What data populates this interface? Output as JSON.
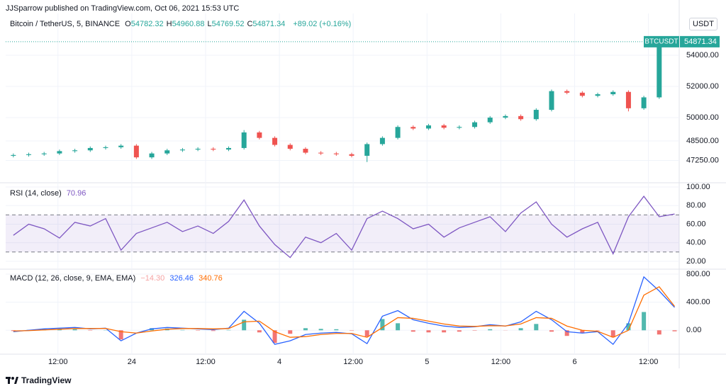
{
  "header": {
    "published": "JJSparrow published on TradingView.com, Oct 06, 2021 15:53 UTC",
    "brand": "TradingView",
    "currency": "USDT"
  },
  "chart_data": [
    {
      "type": "candlestick",
      "title": "Bitcoin / TetherUS, 5, BINANCE",
      "symbol": "BTCUSDT",
      "ohlc_labels": [
        "O",
        "H",
        "L",
        "C"
      ],
      "change": "+89.02 (+0.16%)",
      "up_color": "#26a69a",
      "down_color": "#ef5350",
      "x": [
        4.75,
        7.25,
        9.75,
        12.25,
        14.75,
        17.25,
        19.75,
        22.25,
        24.75,
        27.25,
        29.75,
        32.25,
        34.75,
        37.25,
        39.75,
        42.25,
        44.75,
        47.25,
        49.75,
        52.25,
        54.75,
        57.25,
        59.75,
        62.25,
        64.75,
        67.25,
        69.75,
        72.25,
        74.75,
        77.25,
        79.75,
        82.25,
        84.75,
        87.25,
        89.75,
        92.25,
        94.75,
        97.25,
        99.75,
        102.25,
        104.75,
        107.25,
        109.75,
        112.25
      ],
      "open": [
        47550,
        47600,
        47650,
        47700,
        47850,
        47900,
        48050,
        48100,
        48200,
        47450,
        47700,
        47900,
        47950,
        48000,
        47950,
        48050,
        49050,
        48700,
        48250,
        48000,
        47750,
        47700,
        47650,
        47550,
        48300,
        48700,
        49400,
        49300,
        49500,
        49350,
        49400,
        49700,
        50000,
        50100,
        49900,
        50500,
        51700,
        51600,
        51400,
        51500,
        51650,
        50600,
        51300,
        54782.32
      ],
      "high": [
        47700,
        47750,
        47800,
        47950,
        48000,
        48150,
        48200,
        48300,
        48300,
        47800,
        48000,
        48050,
        48100,
        48100,
        48150,
        49200,
        49150,
        48800,
        48350,
        48100,
        47850,
        47800,
        47750,
        48400,
        48800,
        49500,
        49500,
        49600,
        49600,
        49500,
        49800,
        50100,
        50200,
        50200,
        50600,
        51800,
        51800,
        51700,
        51600,
        51750,
        51750,
        51400,
        55100,
        54960.88
      ],
      "low": [
        47450,
        47500,
        47550,
        47600,
        47750,
        47800,
        47950,
        48000,
        47350,
        47350,
        47600,
        47800,
        47850,
        47850,
        47850,
        47950,
        48600,
        48150,
        47900,
        47650,
        47600,
        47550,
        47450,
        47150,
        48200,
        48600,
        49200,
        49200,
        49250,
        49250,
        49300,
        49600,
        49900,
        49800,
        49800,
        50400,
        51500,
        51300,
        51300,
        51400,
        50400,
        50500,
        51200,
        54769.52
      ],
      "close": [
        47600,
        47650,
        47700,
        47850,
        47900,
        48050,
        48100,
        48200,
        47450,
        47700,
        47900,
        47950,
        48000,
        47950,
        48050,
        49050,
        48700,
        48250,
        48000,
        47750,
        47700,
        47650,
        47550,
        48300,
        48700,
        49400,
        49300,
        49500,
        49350,
        49400,
        49700,
        50000,
        50100,
        49900,
        50500,
        51700,
        51600,
        51400,
        51500,
        51650,
        50600,
        51300,
        54600,
        54871.34
      ],
      "xlim": [
        3.5,
        113
      ],
      "ylim": [
        45820,
        56730
      ],
      "yticks": [
        {
          "value": 47250,
          "label": "47250.00"
        },
        {
          "value": 48500,
          "label": "48500.00"
        },
        {
          "value": 50000,
          "label": "50000.00"
        },
        {
          "value": 52000,
          "label": "52000.00"
        },
        {
          "value": 54000,
          "label": "54000.00"
        }
      ]
    },
    {
      "type": "line",
      "title": "RSI (14, close)",
      "color": "#7e57c2",
      "band": [
        30,
        70
      ],
      "x": [
        4.75,
        7.25,
        9.75,
        12.25,
        14.75,
        17.25,
        19.75,
        22.25,
        24.75,
        27.25,
        29.75,
        32.25,
        34.75,
        37.25,
        39.75,
        42.25,
        44.75,
        47.25,
        49.75,
        52.25,
        54.75,
        57.25,
        59.75,
        62.25,
        64.75,
        67.25,
        69.75,
        72.25,
        74.75,
        77.25,
        79.75,
        82.25,
        84.75,
        87.25,
        89.75,
        92.25,
        94.75,
        97.25,
        99.75,
        102.25,
        104.75,
        107.25,
        109.75,
        112.25
      ],
      "values": [
        48,
        60,
        55,
        45,
        62,
        58,
        66,
        32,
        50,
        56,
        62,
        52,
        58,
        50,
        63,
        86,
        58,
        38,
        24,
        46,
        40,
        50,
        32,
        66,
        74,
        66,
        55,
        60,
        46,
        56,
        62,
        68,
        52,
        72,
        84,
        60,
        46,
        55,
        62,
        28,
        68,
        90,
        68,
        70.96
      ],
      "xlim": [
        3.5,
        113
      ],
      "ylim": [
        11.5,
        104.6
      ],
      "yticks": [
        {
          "value": 20,
          "label": "20.00"
        },
        {
          "value": 40,
          "label": "40.00"
        },
        {
          "value": 60,
          "label": "60.00"
        },
        {
          "value": 80,
          "label": "80.00"
        },
        {
          "value": 100,
          "label": "100.00"
        }
      ]
    },
    {
      "type": "macd",
      "title": "MACD (12, 26, close, 9, EMA, EMA)",
      "last_hist_label": "−14.30",
      "macd_color": "#2962ff",
      "signal_color": "#ff6d00",
      "up_color": "#26a69a",
      "down_color": "#ef5350",
      "x": [
        4.75,
        7.25,
        9.75,
        12.25,
        14.75,
        17.25,
        19.75,
        22.25,
        24.75,
        27.25,
        29.75,
        32.25,
        34.75,
        37.25,
        39.75,
        42.25,
        44.75,
        47.25,
        49.75,
        52.25,
        54.75,
        57.25,
        59.75,
        62.25,
        64.75,
        67.25,
        69.75,
        72.25,
        74.75,
        77.25,
        79.75,
        82.25,
        84.75,
        87.25,
        89.75,
        92.25,
        94.75,
        97.25,
        99.75,
        102.25,
        104.75,
        107.25,
        109.75,
        112.25
      ],
      "macd": [
        -20,
        0,
        20,
        30,
        40,
        20,
        30,
        -150,
        -40,
        20,
        40,
        30,
        20,
        10,
        30,
        270,
        100,
        -200,
        -150,
        -60,
        -40,
        -30,
        -50,
        -190,
        200,
        280,
        150,
        100,
        60,
        40,
        50,
        80,
        60,
        120,
        270,
        150,
        -20,
        -40,
        -20,
        -200,
        100,
        760,
        560,
        326.46
      ],
      "signal": [
        -10,
        -5,
        5,
        15,
        25,
        25,
        27,
        -20,
        -40,
        -10,
        15,
        25,
        25,
        20,
        25,
        120,
        130,
        -20,
        -100,
        -90,
        -60,
        -45,
        -45,
        -100,
        40,
        180,
        170,
        130,
        90,
        60,
        55,
        65,
        62,
        90,
        180,
        170,
        60,
        0,
        -15,
        -100,
        0,
        500,
        620,
        340.76
      ],
      "histogram": [
        -10,
        5,
        15,
        15,
        15,
        -5,
        3,
        -130,
        0,
        30,
        25,
        5,
        -5,
        -10,
        5,
        150,
        -30,
        -180,
        -50,
        30,
        20,
        15,
        -5,
        -90,
        160,
        100,
        -20,
        -30,
        -30,
        -20,
        -5,
        15,
        -2,
        30,
        90,
        -20,
        -80,
        -40,
        -5,
        -100,
        100,
        260,
        -60,
        -14.3
      ],
      "xlim": [
        3.5,
        113
      ],
      "ylim": [
        -340,
        870
      ],
      "yticks": [
        {
          "value": 0,
          "label": "0.00"
        },
        {
          "value": 400,
          "label": "400.00"
        },
        {
          "value": 800,
          "label": "800.00"
        }
      ],
      "xticks": [
        {
          "value": 12,
          "label": "12:00"
        },
        24,
        {
          "value": 36,
          "label": "12:00"
        },
        {
          "value": 48,
          "label": "4"
        },
        {
          "value": 60,
          "label": "12:00"
        },
        {
          "value": 72,
          "label": "5"
        },
        {
          "value": 84,
          "label": "12:00"
        },
        {
          "value": 96,
          "label": "6"
        },
        {
          "value": 108,
          "label": "12:00"
        }
      ]
    }
  ]
}
